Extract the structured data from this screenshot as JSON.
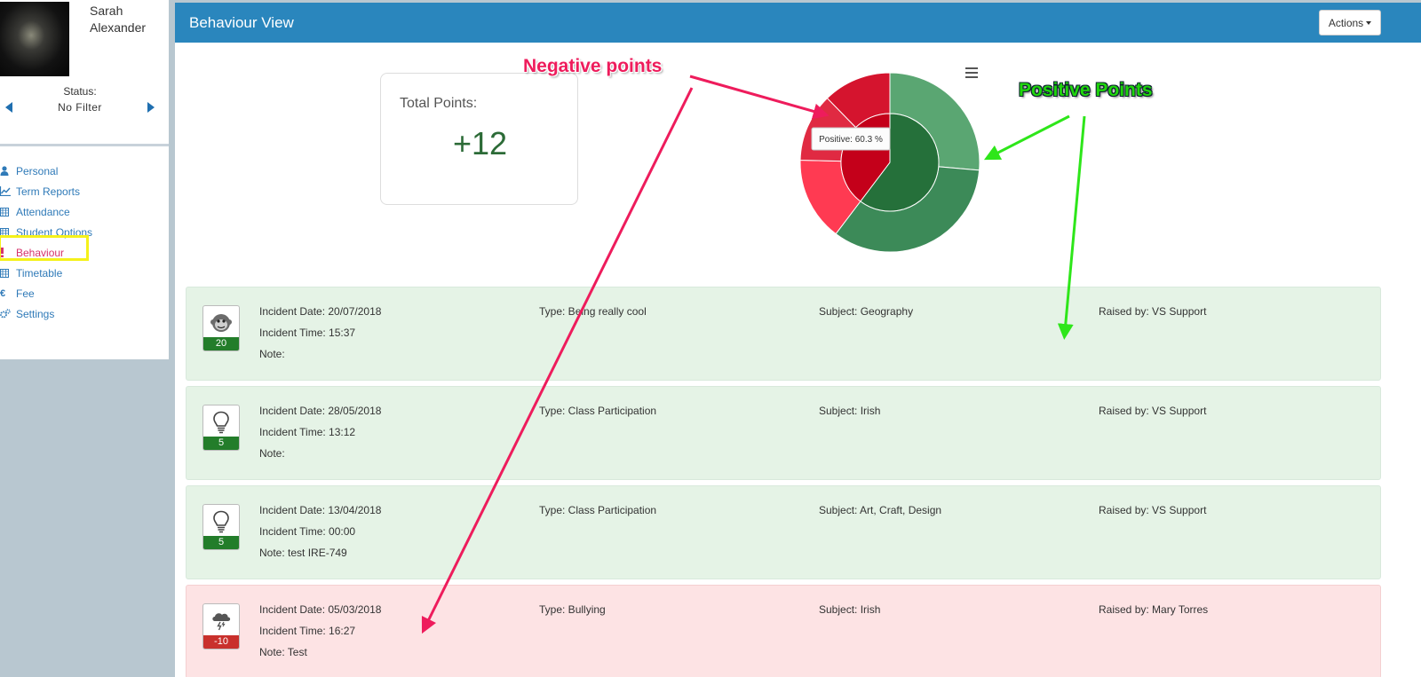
{
  "sidebar": {
    "student_name": "Sarah Alexander",
    "status_label": "Status:",
    "status_value": "No Filter",
    "items": [
      {
        "label": "Personal",
        "icon": "user-icon"
      },
      {
        "label": "Term Reports",
        "icon": "line-chart-icon"
      },
      {
        "label": "Attendance",
        "icon": "calendar-icon"
      },
      {
        "label": "Student Options",
        "icon": "calendar-icon"
      },
      {
        "label": "Behaviour",
        "icon": "exclamation-icon",
        "active": true
      },
      {
        "label": "Timetable",
        "icon": "calendar-icon"
      },
      {
        "label": "Fee",
        "icon": "euro-icon"
      },
      {
        "label": "Settings",
        "icon": "gears-icon"
      }
    ]
  },
  "header": {
    "title": "Behaviour View",
    "actions_label": "Actions"
  },
  "summary": {
    "total_label": "Total Points:",
    "total_value": "+12"
  },
  "chart_data": {
    "type": "pie",
    "tooltip": "Positive: 60.3 %",
    "inner": [
      {
        "name": "Positive",
        "value": 60.3,
        "color": "#25703a"
      },
      {
        "name": "Negative",
        "value": 39.7,
        "color": "#c4001a"
      }
    ],
    "outer": [
      {
        "value": 26.4,
        "color": "#5aa672"
      },
      {
        "value": 33.9,
        "color": "#3c8a58"
      },
      {
        "value": 15.1,
        "color": "#ff3a52"
      },
      {
        "value": 12.3,
        "color": "#e02a42"
      },
      {
        "value": 12.3,
        "color": "#d5142e"
      }
    ]
  },
  "annotations": {
    "negative_label": "Negative points",
    "positive_label": "Positive Points",
    "negative_color": "#ee1c5c",
    "positive_color": "#20d50c"
  },
  "incidents": [
    {
      "kind": "positive",
      "icon": "monkey-icon",
      "points": "20",
      "date": "Incident Date: 20/07/2018",
      "time": "Incident Time: 15:37",
      "note": "Note:",
      "type": "Type: Being really cool",
      "subject": "Subject: Geography",
      "raised_by": "Raised by: VS Support"
    },
    {
      "kind": "positive",
      "icon": "lightbulb-icon",
      "points": "5",
      "date": "Incident Date: 28/05/2018",
      "time": "Incident Time: 13:12",
      "note": "Note:",
      "type": "Type: Class Participation",
      "subject": "Subject: Irish",
      "raised_by": "Raised by: VS Support"
    },
    {
      "kind": "positive",
      "icon": "lightbulb-icon",
      "points": "5",
      "date": "Incident Date: 13/04/2018",
      "time": "Incident Time: 00:00",
      "note": "Note: test IRE-749",
      "type": "Type: Class Participation",
      "subject": "Subject: Art, Craft, Design",
      "raised_by": "Raised by: VS Support"
    },
    {
      "kind": "negative",
      "icon": "storm-cloud-icon",
      "points": "-10",
      "date": "Incident Date: 05/03/2018",
      "time": "Incident Time: 16:27",
      "note": "Note: Test",
      "type": "Type: Bullying",
      "subject": "Subject: Irish",
      "raised_by": "Raised by: Mary Torres"
    }
  ]
}
